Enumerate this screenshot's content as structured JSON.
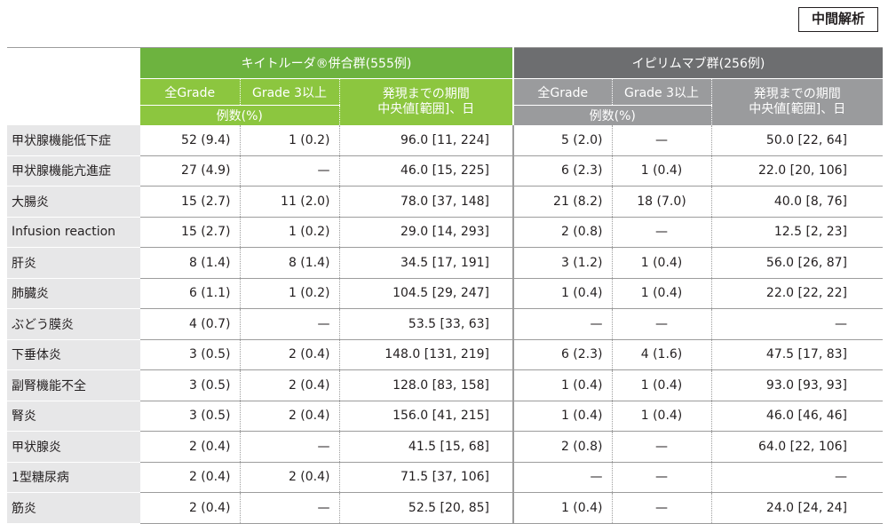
{
  "badge": "中間解析",
  "header": {
    "group_keytruda": "キイトルーダ®併合群(555例)",
    "group_ipilimumab": "イピリムマブ群(256例)",
    "all_grade": "全Grade",
    "grade3": "Grade 3以上",
    "onset_line1": "発現までの期間",
    "onset_line2": "中央値[範囲]、日",
    "cases_pct": "例数(%)"
  },
  "rows": [
    {
      "name": "甲状腺機能低下症",
      "k_all": "52 (9.4)",
      "k_g3": "1 (0.2)",
      "k_med": "96.0 [11, 224]",
      "i_all": "5 (2.0)",
      "i_g3": "—",
      "i_med": "50.0 [22, 64]"
    },
    {
      "name": "甲状腺機能亢進症",
      "k_all": "27 (4.9)",
      "k_g3": "—",
      "k_med": "46.0 [15, 225]",
      "i_all": "6 (2.3)",
      "i_g3": "1 (0.4)",
      "i_med": "22.0 [20, 106]"
    },
    {
      "name": "大腸炎",
      "k_all": "15 (2.7)",
      "k_g3": "11 (2.0)",
      "k_med": "78.0 [37, 148]",
      "i_all": "21 (8.2)",
      "i_g3": "18 (7.0)",
      "i_med": "40.0 [8, 76]"
    },
    {
      "name": "Infusion reaction",
      "k_all": "15 (2.7)",
      "k_g3": "1 (0.2)",
      "k_med": "29.0 [14, 293]",
      "i_all": "2 (0.8)",
      "i_g3": "—",
      "i_med": "12.5 [2, 23]"
    },
    {
      "name": "肝炎",
      "k_all": "8 (1.4)",
      "k_g3": "8 (1.4)",
      "k_med": "34.5 [17, 191]",
      "i_all": "3 (1.2)",
      "i_g3": "1 (0.4)",
      "i_med": "56.0 [26, 87]"
    },
    {
      "name": "肺臓炎",
      "k_all": "6 (1.1)",
      "k_g3": "1 (0.2)",
      "k_med": "104.5 [29, 247]",
      "i_all": "1 (0.4)",
      "i_g3": "1 (0.4)",
      "i_med": "22.0 [22, 22]"
    },
    {
      "name": "ぶどう膜炎",
      "k_all": "4 (0.7)",
      "k_g3": "—",
      "k_med": "53.5 [33, 63]",
      "i_all": "—",
      "i_g3": "—",
      "i_med": "—"
    },
    {
      "name": "下垂体炎",
      "k_all": "3 (0.5)",
      "k_g3": "2 (0.4)",
      "k_med": "148.0 [131, 219]",
      "i_all": "6 (2.3)",
      "i_g3": "4 (1.6)",
      "i_med": "47.5 [17, 83]"
    },
    {
      "name": "副腎機能不全",
      "k_all": "3 (0.5)",
      "k_g3": "2 (0.4)",
      "k_med": "128.0 [83, 158]",
      "i_all": "1 (0.4)",
      "i_g3": "1 (0.4)",
      "i_med": "93.0 [93, 93]"
    },
    {
      "name": "腎炎",
      "k_all": "3 (0.5)",
      "k_g3": "2 (0.4)",
      "k_med": "156.0 [41, 215]",
      "i_all": "1 (0.4)",
      "i_g3": "1 (0.4)",
      "i_med": "46.0 [46, 46]"
    },
    {
      "name": "甲状腺炎",
      "k_all": "2 (0.4)",
      "k_g3": "—",
      "k_med": "41.5 [15, 68]",
      "i_all": "2 (0.8)",
      "i_g3": "—",
      "i_med": "64.0 [22, 106]"
    },
    {
      "name": "1型糖尿病",
      "k_all": "2 (0.4)",
      "k_g3": "2 (0.4)",
      "k_med": "71.5 [37, 106]",
      "i_all": "—",
      "i_g3": "—",
      "i_med": "—"
    },
    {
      "name": "筋炎",
      "k_all": "2 (0.4)",
      "k_g3": "—",
      "k_med": "52.5 [20, 85]",
      "i_all": "1 (0.4)",
      "i_g3": "—",
      "i_med": "24.0 [24, 24]"
    }
  ]
}
